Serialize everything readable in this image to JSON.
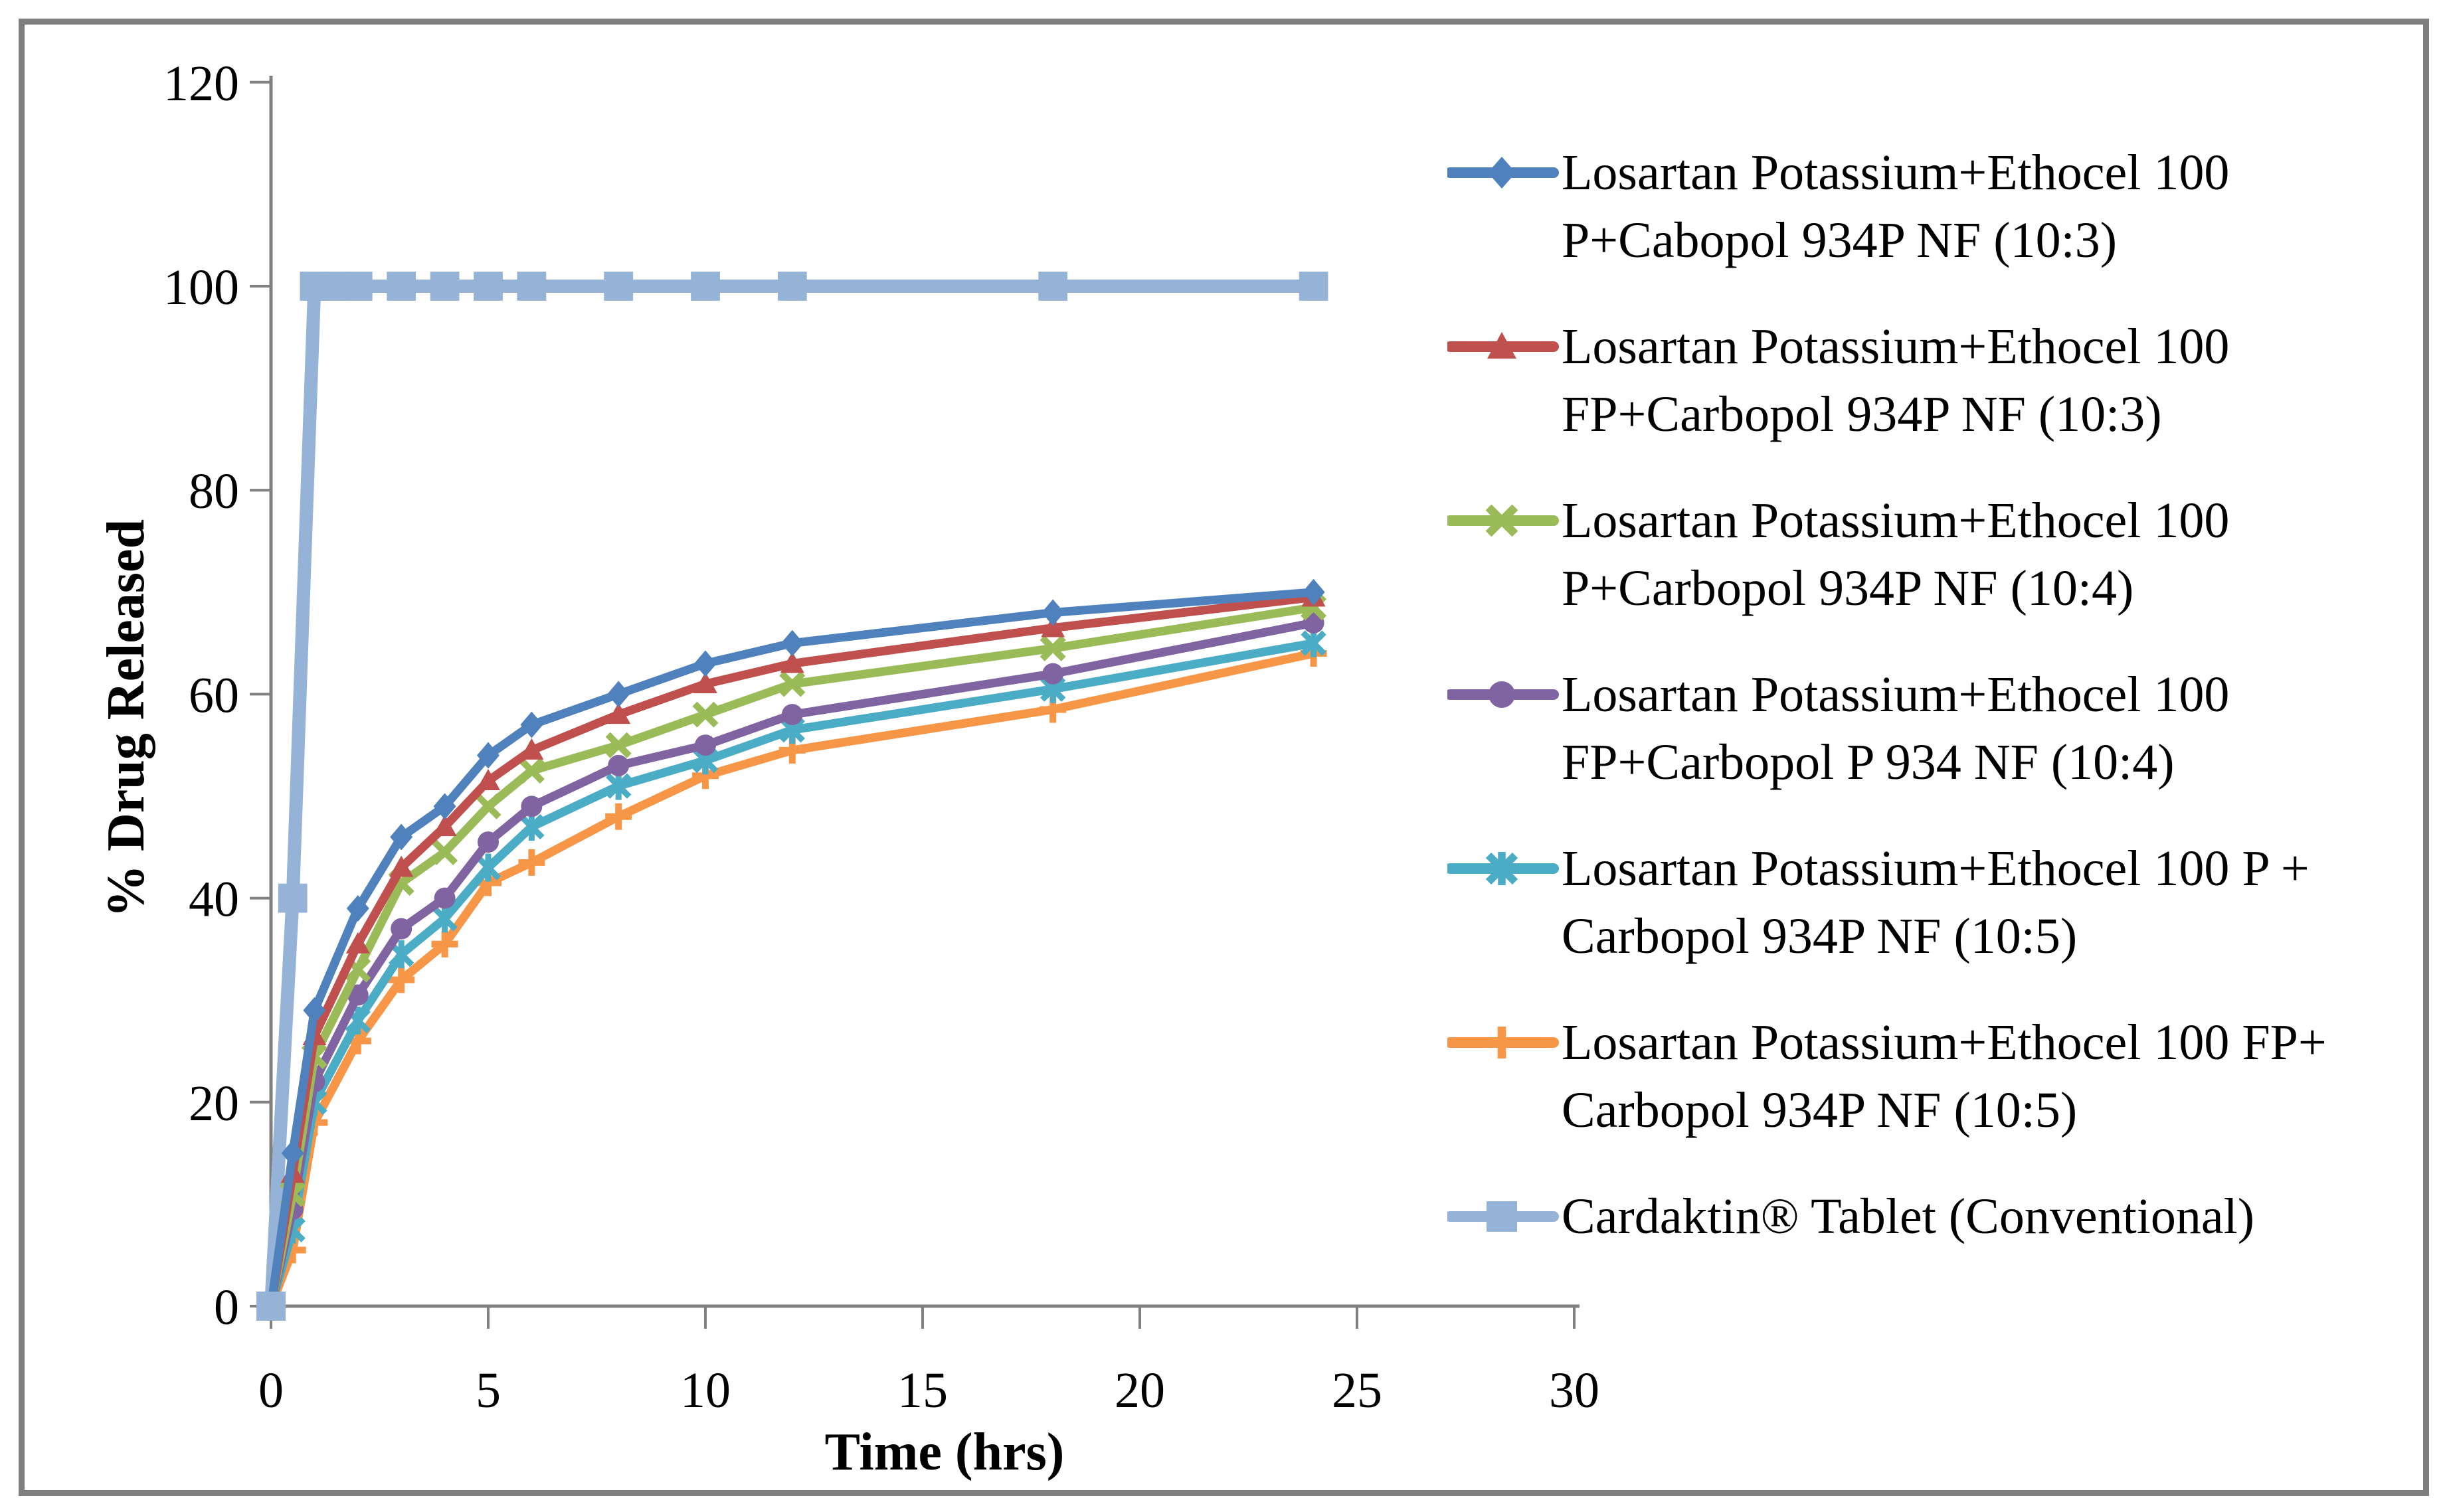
{
  "chart_data": {
    "type": "line",
    "title": "",
    "xlabel": "Time (hrs)",
    "ylabel": "% Drug Released",
    "xlim": [
      0,
      30
    ],
    "ylim": [
      0,
      120
    ],
    "x_ticks": [
      0,
      5,
      10,
      15,
      20,
      25,
      30
    ],
    "y_ticks": [
      0,
      20,
      40,
      60,
      80,
      100,
      120
    ],
    "grid": false,
    "legend_position": "right",
    "axis_color": "#808080",
    "series": [
      {
        "name": "Losartan Potassium+Ethocel 100\nP+Cabopol 934P NF (10:3)",
        "color": "#4F81BD",
        "marker": "diamond",
        "x": [
          0,
          0.5,
          1,
          2,
          3,
          4,
          5,
          6,
          8,
          10,
          12,
          18,
          24
        ],
        "y": [
          0,
          15,
          29,
          39,
          46,
          49,
          54,
          57,
          60,
          63,
          65,
          68,
          70
        ]
      },
      {
        "name": "Losartan Potassium+Ethocel 100\nFP+Carbopol 934P NF (10:3)",
        "color": "#C0504D",
        "marker": "triangle",
        "x": [
          0,
          0.5,
          1,
          2,
          3,
          4,
          5,
          6,
          8,
          10,
          12,
          18,
          24
        ],
        "y": [
          0,
          13,
          26.5,
          35.5,
          43,
          47,
          51.5,
          54.5,
          58,
          61,
          63,
          66.5,
          69.5
        ]
      },
      {
        "name": "Losartan Potassium+Ethocel 100\nP+Carbopol 934P NF (10:4)",
        "color": "#9BBB59",
        "marker": "x",
        "x": [
          0,
          0.5,
          1,
          2,
          3,
          4,
          5,
          6,
          8,
          10,
          12,
          18,
          24
        ],
        "y": [
          0,
          11,
          24.5,
          33,
          41.5,
          44.5,
          49,
          52.5,
          55,
          58,
          61,
          64.5,
          68.5
        ]
      },
      {
        "name": "Losartan Potassium+Ethocel 100\nFP+Carbopol P 934 NF (10:4)",
        "color": "#8064A2",
        "marker": "circle",
        "x": [
          0,
          0.5,
          1,
          2,
          3,
          4,
          5,
          6,
          8,
          10,
          12,
          18,
          24
        ],
        "y": [
          0,
          9.5,
          22,
          30.5,
          37,
          40,
          45.5,
          49,
          53,
          55,
          58,
          62,
          67
        ]
      },
      {
        "name": "Losartan Potassium+Ethocel 100 P +\nCarbopol 934P NF (10:5)",
        "color": "#4BACC6",
        "marker": "asterisk",
        "x": [
          0,
          0.5,
          1,
          2,
          3,
          4,
          5,
          6,
          8,
          10,
          12,
          18,
          24
        ],
        "y": [
          0,
          7.5,
          20,
          28,
          34.5,
          38,
          43,
          47,
          51,
          53.5,
          56.5,
          60.5,
          65
        ]
      },
      {
        "name": "Losartan Potassium+Ethocel 100 FP+\nCarbopol 934P NF (10:5)",
        "color": "#F79646",
        "marker": "plus",
        "x": [
          0,
          0.5,
          1,
          2,
          3,
          4,
          5,
          6,
          8,
          10,
          12,
          18,
          24
        ],
        "y": [
          0,
          5.5,
          18,
          26,
          32,
          35.5,
          41.5,
          43.5,
          48,
          52,
          54.5,
          58.5,
          64
        ]
      },
      {
        "name": "Cardaktin® Tablet (Conventional)",
        "color": "#95B3D7",
        "marker": "square",
        "x": [
          0,
          0.5,
          1,
          1.5,
          2,
          3,
          4,
          5,
          6,
          8,
          10,
          12,
          18,
          24
        ],
        "y": [
          0,
          40,
          100,
          100,
          100,
          100,
          100,
          100,
          100,
          100,
          100,
          100,
          100,
          100
        ]
      }
    ]
  },
  "frame": {
    "border_color": "#7f7f7f"
  }
}
